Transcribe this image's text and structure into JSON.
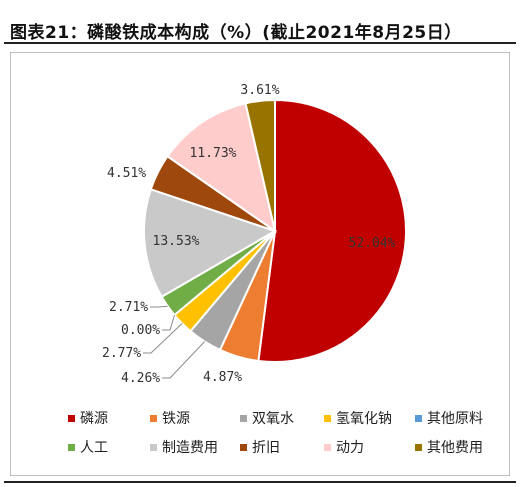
{
  "title": "图表21：磷酸铁成本构成（%）(截止2021年8月25日）",
  "chart_data": {
    "type": "pie",
    "title": "",
    "unit": "%",
    "slices": [
      {
        "name": "磷源",
        "value": 52.04,
        "label": "52.04%",
        "color": "#C00000"
      },
      {
        "name": "铁源",
        "value": 4.87,
        "label": "4.87%",
        "color": "#ED7D31"
      },
      {
        "name": "双氧水",
        "value": 4.26,
        "label": "4.26%",
        "color": "#A5A5A5"
      },
      {
        "name": "氢氧化钠",
        "value": 2.77,
        "label": "2.77%",
        "color": "#FFC000"
      },
      {
        "name": "其他原料",
        "value": 0.0,
        "label": "0.00%",
        "color": "#5B9BD5"
      },
      {
        "name": "人工",
        "value": 2.71,
        "label": "2.71%",
        "color": "#70AD47"
      },
      {
        "name": "制造费用",
        "value": 13.53,
        "label": "13.53%",
        "color": "#C9C9C9"
      },
      {
        "name": "折旧",
        "value": 4.51,
        "label": "4.51%",
        "color": "#9E480E"
      },
      {
        "name": "动力",
        "value": 11.73,
        "label": "11.73%",
        "color": "#FFCCCC"
      },
      {
        "name": "其他费用",
        "value": 3.61,
        "label": "3.61%",
        "color": "#997300"
      }
    ],
    "legend": {
      "position": "bottom",
      "rows": [
        [
          "磷源",
          "铁源",
          "双氧水",
          "氢氧化钠",
          "其他原料"
        ],
        [
          "人工",
          "制造费用",
          "折旧",
          "动力",
          "其他费用"
        ]
      ]
    }
  }
}
